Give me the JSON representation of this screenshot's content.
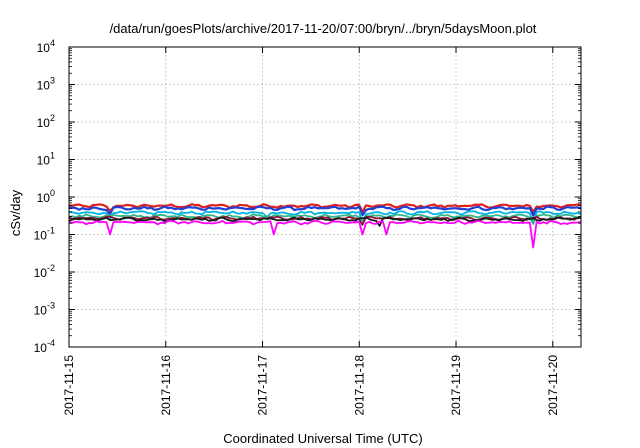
{
  "chart_data": {
    "type": "line",
    "title": "/data/run/goesPlots/archive/2017-11-20/07:00/bryn/../bryn/5daysMoon.plot",
    "xlabel": "Coordinated Universal Time (UTC)",
    "ylabel": "cSv/day",
    "yscale": "log",
    "ylim": [
      0.0001,
      10000
    ],
    "xlim": [
      "2017-11-15 00:00",
      "2017-11-20 07:00"
    ],
    "grid": true,
    "legend": "none",
    "y_ticks": [
      {
        "value": 0.0001,
        "base": "10",
        "exp": "-4"
      },
      {
        "value": 0.001,
        "base": "10",
        "exp": "-3"
      },
      {
        "value": 0.01,
        "base": "10",
        "exp": "-2"
      },
      {
        "value": 0.1,
        "base": "10",
        "exp": "-1"
      },
      {
        "value": 1,
        "base": "10",
        "exp": "0"
      },
      {
        "value": 10,
        "base": "10",
        "exp": "1"
      },
      {
        "value": 100,
        "base": "10",
        "exp": "2"
      },
      {
        "value": 1000,
        "base": "10",
        "exp": "3"
      },
      {
        "value": 10000,
        "base": "10",
        "exp": "4"
      }
    ],
    "x_ticks": [
      "2017-11-15",
      "2017-11-16",
      "2017-11-17",
      "2017-11-18",
      "2017-11-19",
      "2017-11-20"
    ],
    "series": [
      {
        "color": "#e0201c",
        "base": 0.58,
        "dips": [
          {
            "x": "2017-11-15 10:00",
            "y": 0.42
          },
          {
            "x": "2017-11-18 01:00",
            "y": 0.4
          },
          {
            "x": "2017-11-19 19:00",
            "y": 0.4
          }
        ]
      },
      {
        "color": "#1f3fd6",
        "base": 0.5,
        "dips": [
          {
            "x": "2017-11-15 10:00",
            "y": 0.35
          },
          {
            "x": "2017-11-18 01:00",
            "y": 0.33
          },
          {
            "x": "2017-11-19 19:00",
            "y": 0.32
          }
        ]
      },
      {
        "color": "#00b4e6",
        "base": 0.38,
        "dips": [
          {
            "x": "2017-11-15 10:00",
            "y": 0.26
          },
          {
            "x": "2017-11-17 01:00",
            "y": 0.27
          },
          {
            "x": "2017-11-18 01:00",
            "y": 0.22
          },
          {
            "x": "2017-11-19 19:00",
            "y": 0.2
          }
        ]
      },
      {
        "color": "#2fb88a",
        "base": 0.31,
        "dips": [
          {
            "x": "2017-11-18 01:00",
            "y": 0.2
          },
          {
            "x": "2017-11-19 19:00",
            "y": 0.19
          }
        ]
      },
      {
        "color": "#8a1438",
        "base": 0.27,
        "dips": [
          {
            "x": "2017-11-18 01:00",
            "y": 0.18
          }
        ]
      },
      {
        "color": "#1a1a1a",
        "base": 0.255,
        "dips": [
          {
            "x": "2017-11-18 05:00",
            "y": 0.17
          }
        ]
      },
      {
        "color": "#ff00ff",
        "base": 0.21,
        "dips": [
          {
            "x": "2017-11-15 10:00",
            "y": 0.1
          },
          {
            "x": "2017-11-17 03:00",
            "y": 0.1
          },
          {
            "x": "2017-11-18 01:00",
            "y": 0.1
          },
          {
            "x": "2017-11-18 07:00",
            "y": 0.1
          },
          {
            "x": "2017-11-19 19:00",
            "y": 0.045
          }
        ]
      }
    ]
  }
}
